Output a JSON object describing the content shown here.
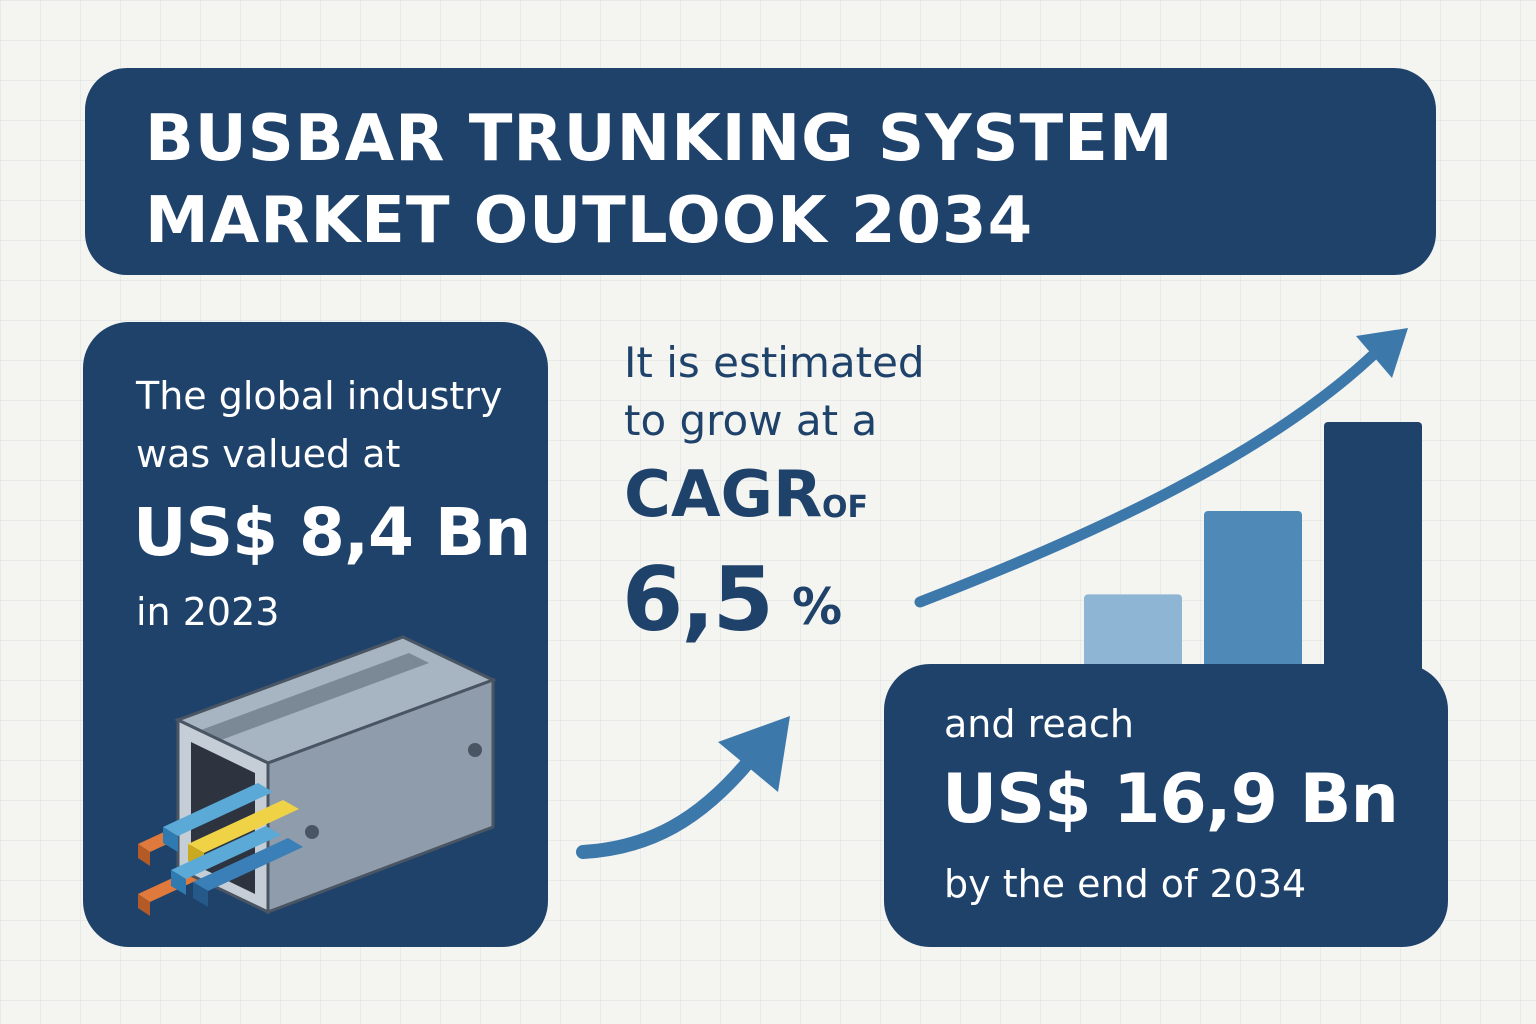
{
  "title": {
    "line1": "BUSBAR TRUNKING SYSTEM",
    "line2": "MARKET OUTLOOK 2034"
  },
  "left_card": {
    "intro_line1": "The global industry",
    "intro_line2": "was valued at",
    "value": "US$ 8,4 Bn",
    "year": "in 2023",
    "icon": "busbar-duct-icon"
  },
  "middle": {
    "line1": "It is estimated",
    "line2": "to grow at a",
    "cagr_word": "CAGR",
    "of_word": "OF",
    "cagr_value": "6,5",
    "percent": "%"
  },
  "right_card": {
    "intro": "and reach",
    "value": "US$ 16,9 Bn",
    "suffix": "by the end of 2034"
  },
  "bar_graphic": {
    "levels": [
      0.38,
      0.68,
      1.0
    ],
    "colors": [
      "#8fb5d4",
      "#4f89b8",
      "#1f426b"
    ]
  },
  "colors": {
    "navy": "#1f426b",
    "arrow_blue": "#3d78ab",
    "background": "#f4f4f1"
  }
}
